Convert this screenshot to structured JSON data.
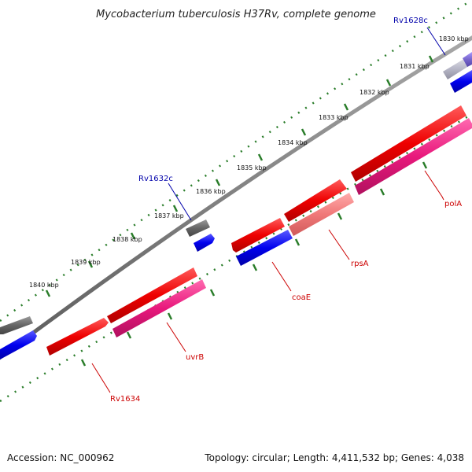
{
  "title": "Mycobacterium tuberculosis H37Rv, complete genome",
  "accession": "Accession: NC_000962",
  "summary": "Topology: circular; Length: 4,411,532 bp; Genes: 4,038",
  "colors": {
    "backbone": "#7a7a7a",
    "tick": "#2a7d2a",
    "red_gene": "#ee0000",
    "pink_gene": "#e8187c",
    "salmon_gene": "#f07878",
    "blue_gene": "#0000ee",
    "gray_gene": "#666666",
    "light_gray_gene": "#b8b8c8",
    "purple_gene": "#7766cc",
    "label_red": "#cc0000",
    "label_blue": "#0000aa"
  },
  "scale_labels": [
    "1830 kbp",
    "1831 kbp",
    "1832 kbp",
    "1833 kbp",
    "1834 kbp",
    "1835 kbp",
    "1836 kbp",
    "1837 kbp",
    "1838 kbp",
    "1839 kbp",
    "1840 kbp"
  ],
  "gene_labels": {
    "rv1628c": "Rv1628c",
    "rv1632c": "Rv1632c",
    "pola": "polA",
    "rpsa": "rpsA",
    "coae": "coaE",
    "uvrb": "uvrB",
    "rv1634": "Rv1634"
  }
}
